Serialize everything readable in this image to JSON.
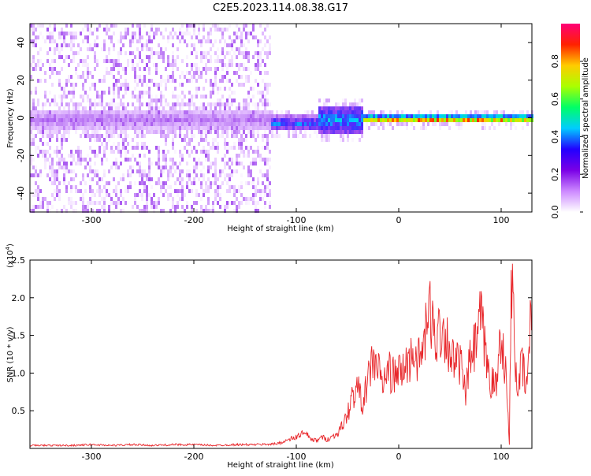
{
  "title": "C2E5.2023.114.08.38.G17",
  "chart_data": [
    {
      "type": "heatmap",
      "xlabel": "Height of straight line (km)",
      "ylabel": "Frequency (Hz)",
      "xlim": [
        -360,
        130
      ],
      "ylim": [
        -50,
        50
      ],
      "xticks": [
        -300,
        -200,
        -100,
        0,
        100
      ],
      "yticks": [
        -40,
        -20,
        0,
        20,
        40
      ],
      "colorbar": {
        "label": "Normalized spectral amplitude",
        "range": [
          0.0,
          1.0
        ],
        "ticks": [
          "0.0",
          "0.2",
          "0.4",
          "0.6",
          "0.8"
        ],
        "colormap": [
          "#ffffff",
          "#cc88ff",
          "#7a00e6",
          "#2200ff",
          "#00ccff",
          "#00ff66",
          "#aaff00",
          "#ffcc00",
          "#ff2200",
          "#ff0077"
        ]
      },
      "features": [
        {
          "region": "noise",
          "x_range": [
            -360,
            -125
          ],
          "freq_range": [
            -50,
            50
          ],
          "amplitude": 0.1
        },
        {
          "region": "band",
          "x_range": [
            -360,
            -125
          ],
          "freq_center": 0,
          "freq_halfwidth": 6,
          "amplitude": 0.2
        },
        {
          "region": "band",
          "x_range": [
            -125,
            -80
          ],
          "freq_center": -2,
          "freq_halfwidth": 4,
          "amplitude": 0.4
        },
        {
          "region": "band",
          "x_range": [
            -80,
            -35
          ],
          "freq_center": 0,
          "freq_halfwidth": 8,
          "amplitude": 0.45
        },
        {
          "region": "band",
          "x_range": [
            -35,
            130
          ],
          "freq_center": 0,
          "freq_halfwidth": 2,
          "amplitude": 0.85
        }
      ]
    },
    {
      "type": "line",
      "xlabel": "Height of straight line (km)",
      "ylabel": "SNR (10 * v/v)",
      "yscale_label": "(x10",
      "yscale_exp": "4",
      "xlim": [
        -360,
        130
      ],
      "ylim": [
        0,
        2.5
      ],
      "xticks": [
        -300,
        -200,
        -100,
        0,
        100
      ],
      "yticks": [
        "0.5",
        "1.0",
        "1.5",
        "2.0",
        "2.5"
      ],
      "color": "#e8262a",
      "series": [
        {
          "x": [
            -360,
            -340,
            -320,
            -300,
            -280,
            -260,
            -240,
            -220,
            -200,
            -180,
            -160,
            -140,
            -120,
            -110,
            -100,
            -95,
            -90,
            -85,
            -80,
            -75,
            -70,
            -65,
            -60,
            -55,
            -50,
            -45,
            -40,
            -35,
            -30,
            -25,
            -20,
            -15,
            -10,
            -5,
            0,
            5,
            10,
            15,
            20,
            25,
            30,
            35,
            40,
            45,
            50,
            55,
            60,
            65,
            70,
            75,
            80,
            85,
            90,
            95,
            100,
            105,
            108,
            110,
            113,
            116,
            120,
            125,
            130
          ],
          "y": [
            0.04,
            0.04,
            0.04,
            0.05,
            0.04,
            0.05,
            0.04,
            0.05,
            0.05,
            0.04,
            0.05,
            0.05,
            0.06,
            0.1,
            0.15,
            0.2,
            0.18,
            0.12,
            0.1,
            0.15,
            0.12,
            0.15,
            0.2,
            0.3,
            0.45,
            0.7,
            0.8,
            0.6,
            0.9,
            1.2,
            1.05,
            0.85,
            1.05,
            0.95,
            1.0,
            1.05,
            1.15,
            1.3,
            1.15,
            1.4,
            1.85,
            1.45,
            1.6,
            1.55,
            1.3,
            1.1,
            1.15,
            0.7,
            1.2,
            1.35,
            1.75,
            1.2,
            0.9,
            0.8,
            1.6,
            0.9,
            0.05,
            2.5,
            1.3,
            0.8,
            1.1,
            0.8,
            1.95
          ]
        }
      ]
    }
  ]
}
